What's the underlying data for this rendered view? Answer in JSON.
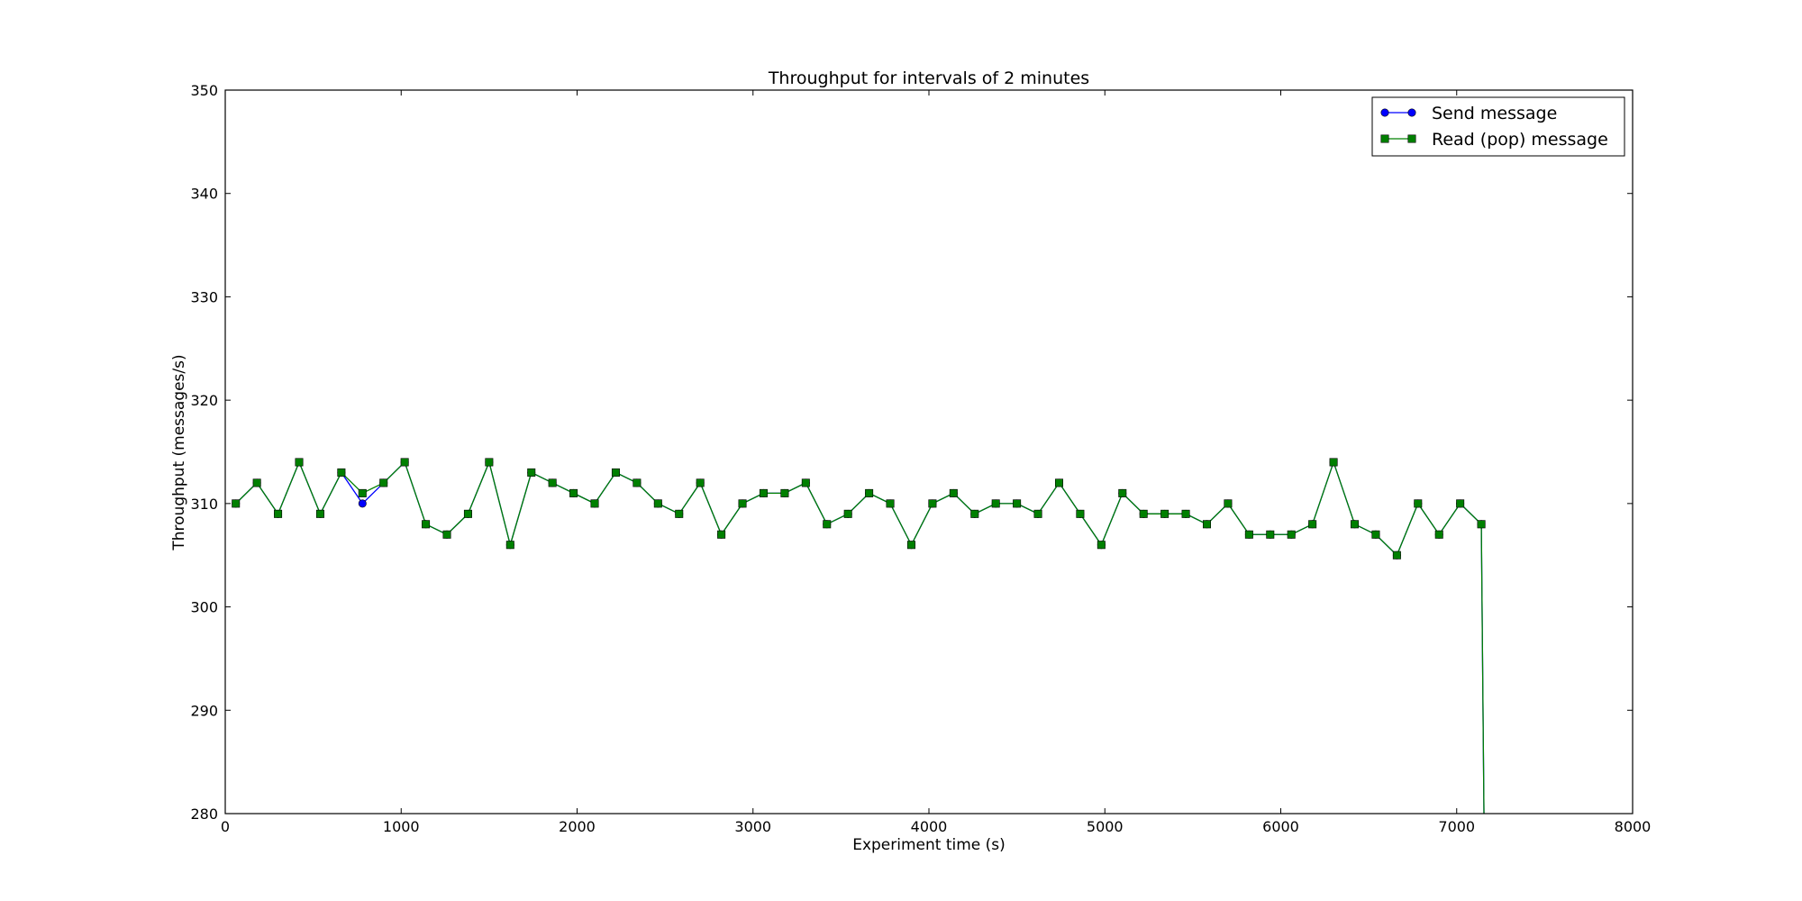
{
  "chart_data": {
    "type": "line",
    "title": "Throughput for intervals of 2 minutes",
    "xlabel": "Experiment time (s)",
    "ylabel": "Throughput (messages/s)",
    "xlim": [
      0,
      8000
    ],
    "ylim": [
      280,
      350
    ],
    "xticks": [
      0,
      1000,
      2000,
      3000,
      4000,
      5000,
      6000,
      7000,
      8000
    ],
    "yticks": [
      280,
      290,
      300,
      310,
      320,
      330,
      340,
      350
    ],
    "grid": false,
    "legend_position": "top-right",
    "series": [
      {
        "name": "Send message",
        "color": "#0000ff",
        "marker": "circle",
        "x": [
          60,
          180,
          300,
          420,
          540,
          660,
          780,
          900,
          1020,
          1140,
          1260,
          1380,
          1500,
          1620,
          1740,
          1860,
          1980,
          2100,
          2220,
          2340,
          2460,
          2580,
          2700,
          2820,
          2940,
          3060,
          3180,
          3300,
          3420,
          3540,
          3660,
          3780,
          3900,
          4020,
          4140,
          4260,
          4380,
          4500,
          4620,
          4740,
          4860,
          4980,
          5100,
          5220,
          5340,
          5460,
          5580,
          5700,
          5820,
          5940,
          6060,
          6180,
          6300,
          6420,
          6540,
          6660,
          6780,
          6900,
          7020,
          7140,
          7155
        ],
        "y": [
          310,
          312,
          309,
          314,
          309,
          313,
          310,
          312,
          314,
          308,
          307,
          309,
          314,
          306,
          313,
          312,
          311,
          310,
          313,
          312,
          310,
          309,
          312,
          307,
          310,
          311,
          311,
          312,
          308,
          309,
          311,
          310,
          306,
          310,
          311,
          309,
          310,
          310,
          309,
          312,
          309,
          306,
          311,
          309,
          309,
          309,
          308,
          310,
          307,
          307,
          307,
          308,
          314,
          308,
          307,
          305,
          310,
          307,
          310,
          308,
          280
        ],
        "marked": 60
      },
      {
        "name": "Read (pop) message",
        "color": "#008000",
        "marker": "square",
        "x": [
          60,
          180,
          300,
          420,
          540,
          660,
          780,
          900,
          1020,
          1140,
          1260,
          1380,
          1500,
          1620,
          1740,
          1860,
          1980,
          2100,
          2220,
          2340,
          2460,
          2580,
          2700,
          2820,
          2940,
          3060,
          3180,
          3300,
          3420,
          3540,
          3660,
          3780,
          3900,
          4020,
          4140,
          4260,
          4380,
          4500,
          4620,
          4740,
          4860,
          4980,
          5100,
          5220,
          5340,
          5460,
          5580,
          5700,
          5820,
          5940,
          6060,
          6180,
          6300,
          6420,
          6540,
          6660,
          6780,
          6900,
          7020,
          7140,
          7155
        ],
        "y": [
          310,
          312,
          309,
          314,
          309,
          313,
          311,
          312,
          314,
          308,
          307,
          309,
          314,
          306,
          313,
          312,
          311,
          310,
          313,
          312,
          310,
          309,
          312,
          307,
          310,
          311,
          311,
          312,
          308,
          309,
          311,
          310,
          306,
          310,
          311,
          309,
          310,
          310,
          309,
          312,
          309,
          306,
          311,
          309,
          309,
          309,
          308,
          310,
          307,
          307,
          307,
          308,
          314,
          308,
          307,
          305,
          310,
          307,
          310,
          308,
          280
        ],
        "marked": 60
      }
    ]
  }
}
